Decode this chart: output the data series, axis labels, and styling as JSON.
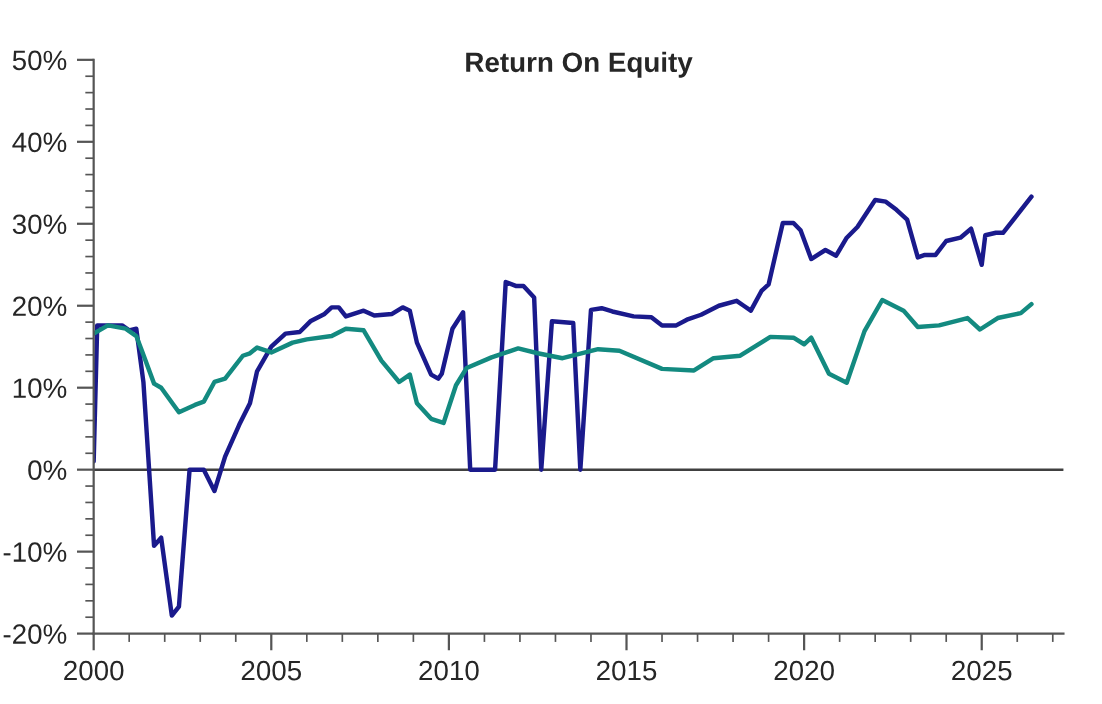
{
  "chart_data": {
    "type": "line",
    "title": "Return On Equity",
    "xlim": [
      2000,
      2027.3
    ],
    "xticks": [
      2000,
      2005,
      2010,
      2015,
      2020,
      2025
    ],
    "ylim": [
      -20,
      50
    ],
    "yticks": [
      {
        "value": -20,
        "label": "-20%"
      },
      {
        "value": -10,
        "label": "-10%"
      },
      {
        "value": 0,
        "label": "0%"
      },
      {
        "value": 10,
        "label": "10%"
      },
      {
        "value": 20,
        "label": "20%"
      },
      {
        "value": 30,
        "label": "30%"
      },
      {
        "value": 40,
        "label": "40%"
      },
      {
        "value": 50,
        "label": "50%"
      }
    ],
    "grid": false,
    "ref_lines": [
      {
        "axis": "y",
        "value": 0,
        "color": "#404040"
      }
    ],
    "series": [
      {
        "color": "#1a1a8c",
        "x": [
          2000,
          2000.1,
          2000.6,
          2000.8,
          2001.0,
          2001.2,
          2001.4,
          2001.7,
          2001.9,
          2002.2,
          2002.4,
          2002.7,
          2003.1,
          2003.4,
          2003.7,
          2004.1,
          2004.4,
          2004.6,
          2005.0,
          2005.4,
          2005.8,
          2006.1,
          2006.5,
          2006.7,
          2006.9,
          2007.1,
          2007.6,
          2007.9,
          2008.4,
          2008.7,
          2008.9,
          2009.1,
          2009.5,
          2009.7,
          2009.8,
          2010.1,
          2010.4,
          2010.6,
          2011.3,
          2011.6,
          2011.9,
          2012.1,
          2012.4,
          2012.6,
          2012.9,
          2013.5,
          2013.7,
          2014.0,
          2014.3,
          2014.6,
          2015.2,
          2015.7,
          2016.0,
          2016.4,
          2016.7,
          2017.1,
          2017.6,
          2018.1,
          2018.3,
          2018.5,
          2018.8,
          2019.0,
          2019.4,
          2019.7,
          2019.9,
          2020.2,
          2020.6,
          2020.9,
          2021.2,
          2021.5,
          2022.0,
          2022.3,
          2022.6,
          2022.9,
          2023.2,
          2023.4,
          2023.7,
          2024.0,
          2024.4,
          2024.7,
          2025.0,
          2025.1,
          2025.4,
          2025.6,
          2026.4
        ],
        "values": [
          1,
          17.6,
          17.6,
          17.6,
          17,
          17.2,
          10.7,
          -9.3,
          -8.3,
          -17.8,
          -16.7,
          0,
          0,
          -2.6,
          1.6,
          5.5,
          8.1,
          12,
          15,
          16.6,
          16.8,
          18.1,
          19,
          19.8,
          19.8,
          18.7,
          19.4,
          18.8,
          19,
          19.8,
          19.4,
          15.5,
          11.6,
          11.1,
          11.7,
          17.2,
          19.2,
          0,
          0,
          22.9,
          22.4,
          22.4,
          21,
          0,
          18.1,
          17.9,
          0,
          19.5,
          19.7,
          19.3,
          18.7,
          18.6,
          17.6,
          17.6,
          18.3,
          18.9,
          20,
          20.6,
          20,
          19.4,
          21.8,
          22.6,
          30.1,
          30.1,
          29.2,
          25.7,
          26.8,
          26.1,
          28.3,
          29.6,
          32.9,
          32.7,
          31.7,
          30.5,
          25.9,
          26.2,
          26.2,
          27.9,
          28.3,
          29.4,
          25,
          28.6,
          28.9,
          28.9,
          33.3
        ]
      },
      {
        "color": "#138a80",
        "x": [
          2000,
          2000.4,
          2000.9,
          2001.2,
          2001.35,
          2001.7,
          2001.9,
          2002.4,
          2002.85,
          2003.1,
          2003.4,
          2003.7,
          2004.2,
          2004.4,
          2004.6,
          2005.0,
          2005.6,
          2006.0,
          2006.7,
          2007.1,
          2007.6,
          2008.1,
          2008.6,
          2008.9,
          2009.1,
          2009.5,
          2009.85,
          2010.2,
          2010.5,
          2011.2,
          2011.95,
          2012.5,
          2013.2,
          2014.2,
          2014.8,
          2016.0,
          2016.9,
          2017.45,
          2018.2,
          2019.05,
          2019.7,
          2020.0,
          2020.2,
          2020.7,
          2021.2,
          2021.7,
          2022.2,
          2022.8,
          2023.2,
          2023.8,
          2024.6,
          2024.95,
          2025.45,
          2026.1,
          2026.4
        ],
        "values": [
          16.6,
          17.6,
          17.2,
          16.3,
          14.6,
          10.5,
          10,
          7,
          7.9,
          8.3,
          10.7,
          11.1,
          13.9,
          14.2,
          14.9,
          14.3,
          15.5,
          15.9,
          16.3,
          17.2,
          17,
          13.3,
          10.7,
          11.6,
          8.1,
          6.2,
          5.7,
          10.3,
          12.4,
          13.7,
          14.8,
          14.2,
          13.6,
          14.7,
          14.5,
          12.3,
          12.1,
          13.6,
          13.9,
          16.2,
          16.1,
          15.3,
          16.1,
          11.7,
          10.6,
          16.9,
          20.7,
          19.4,
          17.4,
          17.6,
          18.5,
          17.1,
          18.5,
          19.1,
          20.2
        ]
      }
    ]
  }
}
